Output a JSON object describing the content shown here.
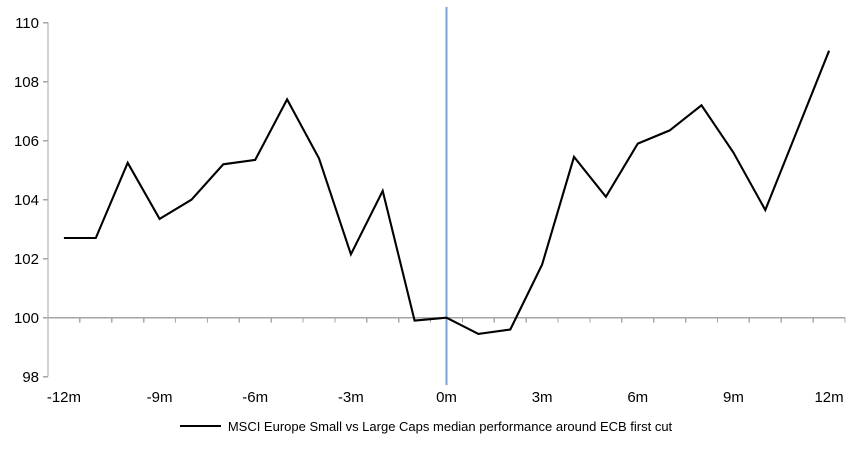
{
  "chart_data": {
    "type": "line",
    "title": "",
    "xlabel": "",
    "ylabel": "",
    "grid": false,
    "xlim_months": [
      -12,
      12
    ],
    "ylim": [
      98,
      110
    ],
    "yticks": [
      98,
      100,
      102,
      104,
      106,
      108,
      110
    ],
    "xtick_months": [
      -12,
      -9,
      -6,
      -3,
      0,
      3,
      6,
      9,
      12
    ],
    "xtick_labels": [
      "-12m",
      "-9m",
      "-6m",
      "-3m",
      "0m",
      "3m",
      "6m",
      "9m",
      "12m"
    ],
    "baseline_value": 100,
    "axis_color": "#A6A6A6",
    "event_line": {
      "month": 0,
      "color": "#78A3D1"
    },
    "series": [
      {
        "name": "MSCI Europe Small vs Large Caps median performance around ECB first cut",
        "color": "#000000",
        "x_months": [
          -12,
          -11,
          -10,
          -9,
          -8,
          -7,
          -6,
          -5,
          -4,
          -3,
          -2,
          -1,
          0,
          1,
          2,
          3,
          4,
          5,
          6,
          7,
          8,
          9,
          10,
          11,
          12
        ],
        "values": [
          102.7,
          102.7,
          105.25,
          103.35,
          104.0,
          105.2,
          105.35,
          107.4,
          105.4,
          102.15,
          104.3,
          99.9,
          100.0,
          99.45,
          99.6,
          101.8,
          105.45,
          104.1,
          105.9,
          106.35,
          107.2,
          105.6,
          103.65,
          106.35,
          109.05
        ]
      }
    ],
    "legend": {
      "position": "bottom-center",
      "label": "MSCI Europe Small vs Large Caps median performance around ECB first cut"
    }
  }
}
